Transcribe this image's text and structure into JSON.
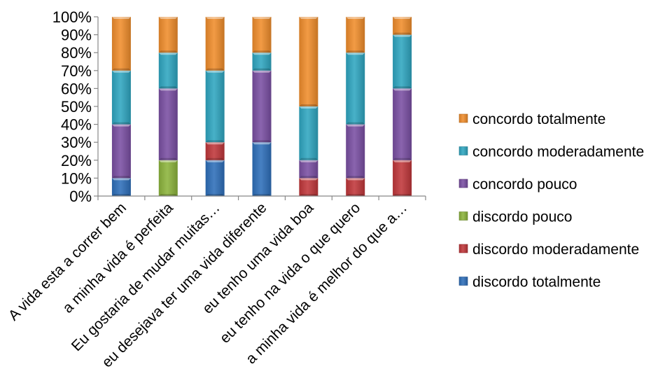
{
  "chart_data": {
    "type": "bar",
    "stacked": true,
    "title": "",
    "xlabel": "",
    "ylabel": "",
    "ylim": [
      0,
      100
    ],
    "yticks": [
      "0%",
      "10%",
      "20%",
      "30%",
      "40%",
      "50%",
      "60%",
      "70%",
      "80%",
      "90%",
      "100%"
    ],
    "grid": false,
    "legend_position": "right",
    "categories": [
      "A vida esta a correr bem",
      "a minha vida é perfeita",
      "Eu gostaria de mudar muitas…",
      "eu desejava ter uma vida diferente",
      "eu tenho uma vida boa",
      "eu tenho na vida o que quero",
      "a minha vida é melhor do que a…"
    ],
    "series": [
      {
        "name": "discordo totalmente",
        "color": "#2e6fba",
        "values": [
          10,
          0,
          20,
          30,
          0,
          0,
          0
        ]
      },
      {
        "name": "discordo moderadamente",
        "color": "#c0373a",
        "values": [
          0,
          0,
          10,
          0,
          10,
          10,
          20
        ]
      },
      {
        "name": "discordo pouco",
        "color": "#8cb43c",
        "values": [
          0,
          20,
          0,
          0,
          0,
          0,
          0
        ]
      },
      {
        "name": "concordo pouco",
        "color": "#7a4fa3",
        "values": [
          30,
          40,
          0,
          40,
          10,
          30,
          40
        ]
      },
      {
        "name": "concordo moderadamente",
        "color": "#2fa6c1",
        "values": [
          30,
          20,
          40,
          10,
          30,
          40,
          30
        ]
      },
      {
        "name": "concordo totalmente",
        "color": "#f08d2c",
        "values": [
          30,
          20,
          30,
          20,
          50,
          20,
          10
        ]
      }
    ]
  }
}
